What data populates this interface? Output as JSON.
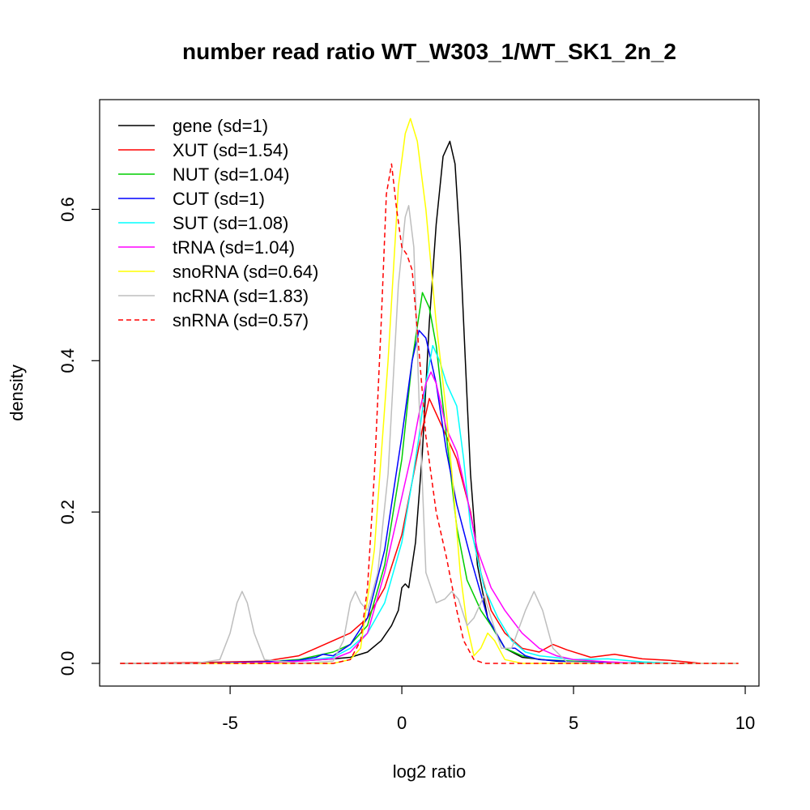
{
  "chart_data": {
    "type": "line",
    "title": "number read ratio WT_W303_1/WT_SK1_2n_2",
    "xlabel": "log2 ratio",
    "ylabel": "density",
    "xlim": [
      -8.8,
      10.4
    ],
    "ylim": [
      -0.03,
      0.745
    ],
    "x_ticks": [
      -5,
      0,
      5,
      10
    ],
    "x_tick_labels": [
      "-5",
      "0",
      "5",
      "10"
    ],
    "y_ticks": [
      0.0,
      0.2,
      0.4,
      0.6
    ],
    "y_tick_labels": [
      "0.0",
      "0.2",
      "0.4",
      "0.6"
    ],
    "grid": false,
    "legend_position": "top-left",
    "series": [
      {
        "name": "gene (sd=1)",
        "color": "#000000",
        "dash": "solid",
        "points": [
          [
            -8.2,
            0
          ],
          [
            -6,
            0
          ],
          [
            -4,
            0.001
          ],
          [
            -3,
            0.003
          ],
          [
            -2,
            0.006
          ],
          [
            -1.5,
            0.008
          ],
          [
            -1,
            0.015
          ],
          [
            -0.6,
            0.03
          ],
          [
            -0.3,
            0.05
          ],
          [
            -0.1,
            0.07
          ],
          [
            0,
            0.1
          ],
          [
            0.1,
            0.105
          ],
          [
            0.2,
            0.1
          ],
          [
            0.4,
            0.16
          ],
          [
            0.6,
            0.28
          ],
          [
            0.8,
            0.45
          ],
          [
            1.0,
            0.58
          ],
          [
            1.2,
            0.67
          ],
          [
            1.4,
            0.69
          ],
          [
            1.55,
            0.66
          ],
          [
            1.7,
            0.55
          ],
          [
            1.85,
            0.4
          ],
          [
            2.0,
            0.25
          ],
          [
            2.2,
            0.13
          ],
          [
            2.5,
            0.06
          ],
          [
            3.0,
            0.02
          ],
          [
            3.5,
            0.008
          ],
          [
            4.5,
            0.003
          ],
          [
            6,
            0.001
          ],
          [
            8.5,
            0
          ]
        ]
      },
      {
        "name": "XUT (sd=1.54)",
        "color": "#ff0000",
        "dash": "solid",
        "points": [
          [
            -8.2,
            0
          ],
          [
            -6,
            0.001
          ],
          [
            -4,
            0.003
          ],
          [
            -3,
            0.01
          ],
          [
            -2.5,
            0.02
          ],
          [
            -2,
            0.03
          ],
          [
            -1.5,
            0.04
          ],
          [
            -1,
            0.06
          ],
          [
            -0.5,
            0.1
          ],
          [
            0,
            0.17
          ],
          [
            0.3,
            0.24
          ],
          [
            0.6,
            0.31
          ],
          [
            0.8,
            0.35
          ],
          [
            1.0,
            0.33
          ],
          [
            1.3,
            0.3
          ],
          [
            1.6,
            0.27
          ],
          [
            2.0,
            0.2
          ],
          [
            2.3,
            0.12
          ],
          [
            2.6,
            0.07
          ],
          [
            3.0,
            0.04
          ],
          [
            3.5,
            0.02
          ],
          [
            4.0,
            0.015
          ],
          [
            4.4,
            0.025
          ],
          [
            4.8,
            0.018
          ],
          [
            5.5,
            0.008
          ],
          [
            6.2,
            0.012
          ],
          [
            7,
            0.006
          ],
          [
            7.8,
            0.004
          ],
          [
            8.5,
            0.001
          ],
          [
            8.7,
            0
          ]
        ]
      },
      {
        "name": "NUT (sd=1.04)",
        "color": "#00cd00",
        "dash": "solid",
        "points": [
          [
            -8.2,
            0
          ],
          [
            -6,
            0
          ],
          [
            -4,
            0.002
          ],
          [
            -3,
            0.005
          ],
          [
            -2.5,
            0.01
          ],
          [
            -2,
            0.015
          ],
          [
            -1.5,
            0.025
          ],
          [
            -1,
            0.05
          ],
          [
            -0.5,
            0.13
          ],
          [
            0,
            0.27
          ],
          [
            0.3,
            0.4
          ],
          [
            0.6,
            0.49
          ],
          [
            0.8,
            0.47
          ],
          [
            1.0,
            0.42
          ],
          [
            1.3,
            0.3
          ],
          [
            1.6,
            0.18
          ],
          [
            1.9,
            0.11
          ],
          [
            2.3,
            0.07
          ],
          [
            2.6,
            0.05
          ],
          [
            3.0,
            0.02
          ],
          [
            3.5,
            0.01
          ],
          [
            4.0,
            0.005
          ],
          [
            5,
            0.003
          ],
          [
            6,
            0.001
          ],
          [
            7,
            0
          ]
        ]
      },
      {
        "name": "CUT (sd=1)",
        "color": "#0000ff",
        "dash": "solid",
        "points": [
          [
            -8.2,
            0
          ],
          [
            -6,
            0
          ],
          [
            -5,
            0.001
          ],
          [
            -4,
            0.002
          ],
          [
            -3,
            0.004
          ],
          [
            -2.5,
            0.008
          ],
          [
            -2.3,
            0.012
          ],
          [
            -2,
            0.01
          ],
          [
            -1.5,
            0.025
          ],
          [
            -1,
            0.06
          ],
          [
            -0.5,
            0.15
          ],
          [
            0,
            0.3
          ],
          [
            0.3,
            0.4
          ],
          [
            0.5,
            0.44
          ],
          [
            0.7,
            0.43
          ],
          [
            1.0,
            0.37
          ],
          [
            1.3,
            0.28
          ],
          [
            1.6,
            0.21
          ],
          [
            2.0,
            0.14
          ],
          [
            2.5,
            0.06
          ],
          [
            3.0,
            0.02
          ],
          [
            3.3,
            0.02
          ],
          [
            3.6,
            0.01
          ],
          [
            4,
            0.005
          ],
          [
            5,
            0.002
          ],
          [
            6,
            0.001
          ],
          [
            7,
            0
          ]
        ]
      },
      {
        "name": "SUT (sd=1.08)",
        "color": "#00ffff",
        "dash": "solid",
        "points": [
          [
            -8.2,
            0
          ],
          [
            -6,
            0
          ],
          [
            -4,
            0.001
          ],
          [
            -3,
            0.003
          ],
          [
            -2,
            0.008
          ],
          [
            -1.5,
            0.02
          ],
          [
            -1,
            0.04
          ],
          [
            -0.5,
            0.08
          ],
          [
            0,
            0.16
          ],
          [
            0.3,
            0.24
          ],
          [
            0.5,
            0.3
          ],
          [
            0.7,
            0.37
          ],
          [
            0.9,
            0.42
          ],
          [
            1.1,
            0.4
          ],
          [
            1.3,
            0.37
          ],
          [
            1.6,
            0.34
          ],
          [
            1.8,
            0.27
          ],
          [
            2.0,
            0.18
          ],
          [
            2.4,
            0.1
          ],
          [
            2.8,
            0.06
          ],
          [
            3.2,
            0.03
          ],
          [
            3.6,
            0.015
          ],
          [
            4,
            0.01
          ],
          [
            5,
            0.005
          ],
          [
            6,
            0.006
          ],
          [
            7,
            0.002
          ],
          [
            8,
            0
          ]
        ]
      },
      {
        "name": "tRNA (sd=1.04)",
        "color": "#ff00ff",
        "dash": "solid",
        "points": [
          [
            -8.2,
            0
          ],
          [
            -6,
            0
          ],
          [
            -4,
            0.001
          ],
          [
            -3,
            0.003
          ],
          [
            -2,
            0.006
          ],
          [
            -1.5,
            0.015
          ],
          [
            -1,
            0.04
          ],
          [
            -0.5,
            0.12
          ],
          [
            0,
            0.22
          ],
          [
            0.3,
            0.28
          ],
          [
            0.5,
            0.33
          ],
          [
            0.7,
            0.37
          ],
          [
            0.85,
            0.385
          ],
          [
            1.0,
            0.37
          ],
          [
            1.3,
            0.31
          ],
          [
            1.6,
            0.28
          ],
          [
            1.9,
            0.22
          ],
          [
            2.2,
            0.15
          ],
          [
            2.6,
            0.1
          ],
          [
            3.0,
            0.07
          ],
          [
            3.5,
            0.04
          ],
          [
            4,
            0.02
          ],
          [
            4.5,
            0.01
          ],
          [
            5,
            0.005
          ],
          [
            6,
            0.002
          ],
          [
            7,
            0
          ]
        ]
      },
      {
        "name": "snoRNA (sd=0.64)",
        "color": "#ffff00",
        "dash": "solid",
        "points": [
          [
            -8.2,
            0
          ],
          [
            -2,
            0
          ],
          [
            -1.5,
            0.005
          ],
          [
            -1.2,
            0.02
          ],
          [
            -0.8,
            0.15
          ],
          [
            -0.4,
            0.4
          ],
          [
            -0.1,
            0.63
          ],
          [
            0.1,
            0.7
          ],
          [
            0.25,
            0.72
          ],
          [
            0.45,
            0.69
          ],
          [
            0.7,
            0.6
          ],
          [
            1.0,
            0.45
          ],
          [
            1.3,
            0.33
          ],
          [
            1.5,
            0.23
          ],
          [
            1.7,
            0.12
          ],
          [
            1.9,
            0.05
          ],
          [
            2.1,
            0.01
          ],
          [
            2.3,
            0.02
          ],
          [
            2.5,
            0.04
          ],
          [
            2.7,
            0.03
          ],
          [
            3.0,
            0.005
          ],
          [
            3.5,
            0
          ],
          [
            9.8,
            0
          ]
        ]
      },
      {
        "name": "ncRNA (sd=1.83)",
        "color": "#bebebe",
        "dash": "solid",
        "points": [
          [
            -8.2,
            0
          ],
          [
            -6,
            0
          ],
          [
            -5.3,
            0.005
          ],
          [
            -5.0,
            0.04
          ],
          [
            -4.8,
            0.08
          ],
          [
            -4.65,
            0.095
          ],
          [
            -4.5,
            0.08
          ],
          [
            -4.3,
            0.04
          ],
          [
            -4.0,
            0.005
          ],
          [
            -3,
            0
          ],
          [
            -2,
            0.003
          ],
          [
            -1.7,
            0.03
          ],
          [
            -1.5,
            0.08
          ],
          [
            -1.35,
            0.095
          ],
          [
            -1.2,
            0.08
          ],
          [
            -1.0,
            0.07
          ],
          [
            -0.7,
            0.12
          ],
          [
            -0.4,
            0.25
          ],
          [
            -0.1,
            0.5
          ],
          [
            0.1,
            0.59
          ],
          [
            0.2,
            0.605
          ],
          [
            0.35,
            0.55
          ],
          [
            0.5,
            0.35
          ],
          [
            0.7,
            0.12
          ],
          [
            1.0,
            0.08
          ],
          [
            1.25,
            0.085
          ],
          [
            1.45,
            0.095
          ],
          [
            1.65,
            0.085
          ],
          [
            1.9,
            0.05
          ],
          [
            2.1,
            0.06
          ],
          [
            2.4,
            0.09
          ],
          [
            2.6,
            0.06
          ],
          [
            2.9,
            0.02
          ],
          [
            3.2,
            0.02
          ],
          [
            3.6,
            0.07
          ],
          [
            3.85,
            0.095
          ],
          [
            4.1,
            0.07
          ],
          [
            4.4,
            0.02
          ],
          [
            4.8,
            0.002
          ],
          [
            6,
            0
          ],
          [
            9.8,
            0
          ]
        ]
      },
      {
        "name": "snRNA (sd=0.57)",
        "color": "#ff0000",
        "dash": "dashed",
        "points": [
          [
            -8.2,
            0
          ],
          [
            -2,
            0
          ],
          [
            -1.5,
            0.005
          ],
          [
            -1.2,
            0.03
          ],
          [
            -1.0,
            0.1
          ],
          [
            -0.8,
            0.25
          ],
          [
            -0.6,
            0.45
          ],
          [
            -0.45,
            0.62
          ],
          [
            -0.3,
            0.66
          ],
          [
            -0.15,
            0.6
          ],
          [
            0,
            0.55
          ],
          [
            0.15,
            0.54
          ],
          [
            0.3,
            0.52
          ],
          [
            0.45,
            0.44
          ],
          [
            0.7,
            0.3
          ],
          [
            1.0,
            0.2
          ],
          [
            1.3,
            0.14
          ],
          [
            1.6,
            0.07
          ],
          [
            1.8,
            0.03
          ],
          [
            2.1,
            0.005
          ],
          [
            2.4,
            0
          ],
          [
            9.8,
            0
          ]
        ]
      }
    ]
  }
}
